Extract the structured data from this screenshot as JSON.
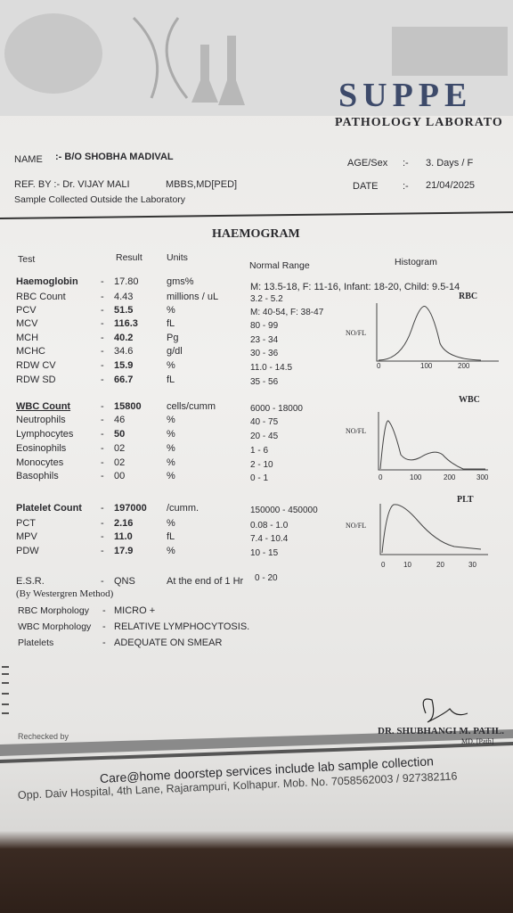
{
  "header": {
    "lab_name": "SUPPE",
    "subtitle": "PATHOLOGY LABORATO"
  },
  "patient": {
    "name_label": "NAME",
    "name": ":- B/O SHOBHA MADIVAL",
    "ref_label": "REF. BY :- Dr. VIJAY MALI",
    "ref_degree": "MBBS,MD[PED]",
    "sample_note": "Sample Collected Outside the Laboratory",
    "age_label": "AGE/Sex",
    "age_sep": ":-",
    "age_value": "3. Days  /  F",
    "date_label": "DATE",
    "date_sep": ":-",
    "date_value": "21/04/2025"
  },
  "report": {
    "title": "HAEMOGRAM",
    "columns": [
      "Test",
      "Result",
      "Units",
      "Normal Range",
      "Histogram"
    ],
    "rows": [
      [
        "Haemoglobin",
        "-",
        "17.80",
        "gms%",
        "M: 13.5-18, F: 11-16, Infant: 18-20, Child: 9.5-14"
      ],
      [
        "RBC Count",
        "-",
        "4.43",
        "millions / uL",
        "3.2 - 5.2"
      ],
      [
        "PCV",
        "-",
        "51.5",
        "%",
        "M: 40-54, F: 38-47"
      ],
      [
        "MCV",
        "-",
        "116.3",
        "fL",
        "80 - 99"
      ],
      [
        "MCH",
        "-",
        "40.2",
        "Pg",
        "23 - 34"
      ],
      [
        "MCHC",
        "-",
        "34.6",
        "g/dl",
        "30 - 36"
      ],
      [
        "RDW CV",
        "-",
        "15.9",
        "%",
        "11.0 - 14.5"
      ],
      [
        "RDW SD",
        "-",
        "66.7",
        "fL",
        "35 - 56"
      ],
      [
        "WBC Count",
        "-",
        "15800",
        "cells/cumm",
        "6000 - 18000"
      ],
      [
        "Neutrophils",
        "-",
        "46",
        "%",
        "40 - 75"
      ],
      [
        "Lymphocytes",
        "-",
        "50",
        "%",
        "20 - 45"
      ],
      [
        "Eosinophils",
        "-",
        "02",
        "%",
        "1 - 6"
      ],
      [
        "Monocytes",
        "-",
        "02",
        "%",
        "2 - 10"
      ],
      [
        "Basophils",
        "-",
        "00",
        "%",
        "0 - 1"
      ],
      [
        "Platelet Count",
        "-",
        "197000",
        "/cumm.",
        "150000 - 450000"
      ],
      [
        "PCT",
        "-",
        "2.16",
        "%",
        "0.08 - 1.0"
      ],
      [
        "MPV",
        "-",
        "11.0",
        "fL",
        "7.4 - 10.4"
      ],
      [
        "PDW",
        "-",
        "17.9",
        "%",
        "10 - 15"
      ],
      [
        "E.S.R.",
        "-",
        "QNS",
        "At the end of 1 Hr",
        "0 - 20"
      ]
    ],
    "esr_method": "(By Westergren Method)",
    "morphology": [
      [
        "RBC Morphology",
        "-",
        "MICRO +"
      ],
      [
        "WBC Morphology",
        "-",
        "RELATIVE LYMPHOCYTOSIS."
      ],
      [
        "Platelets",
        "-",
        "ADEQUATE ON SMEAR"
      ]
    ],
    "histograms": [
      {
        "title": "RBC",
        "y_label": "NO/FL",
        "ticks": [
          "0",
          "100",
          "200"
        ]
      },
      {
        "title": "WBC",
        "y_label": "NO/FL",
        "ticks": [
          "0",
          "100",
          "200",
          "300"
        ]
      },
      {
        "title": "PLT",
        "y_label": "NO/FL",
        "ticks": [
          "0",
          "10",
          "20",
          "30"
        ]
      }
    ]
  },
  "footer": {
    "rechecked": "Rechecked by",
    "doctor": "DR. SHUBHANGI M. PATIL.",
    "doctor_degree": "MD. [Path]",
    "promo": "Care@home doorstep services include lab sample collection",
    "address": "Opp. Daiv Hospital, 4th Lane, Rajarampuri, Kolhapur. Mob. No. 7058562003 / 927382116"
  }
}
